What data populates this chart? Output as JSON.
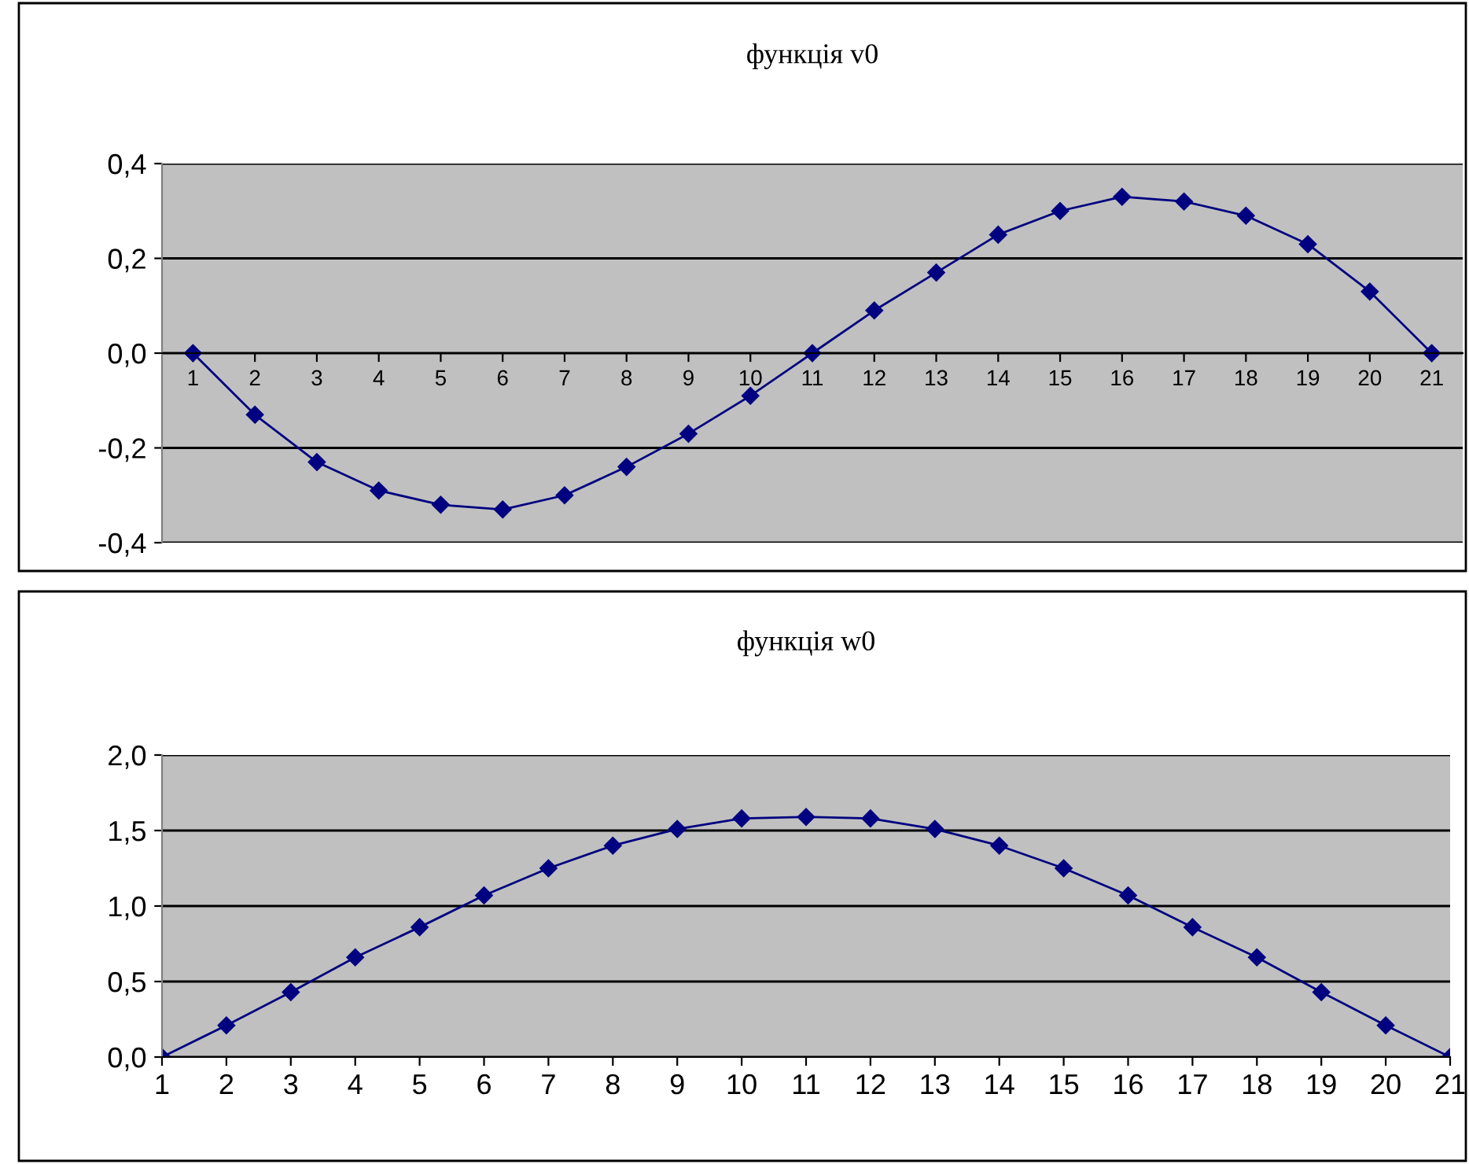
{
  "chart_data": [
    {
      "type": "line",
      "title": "функція v0",
      "categories": [
        "1",
        "2",
        "3",
        "4",
        "5",
        "6",
        "7",
        "8",
        "9",
        "10",
        "11",
        "12",
        "13",
        "14",
        "15",
        "16",
        "17",
        "18",
        "19",
        "20",
        "21"
      ],
      "series": [
        {
          "color": "#000080",
          "values": [
            0,
            -0.13,
            -0.23,
            -0.29,
            -0.32,
            -0.33,
            -0.3,
            -0.24,
            -0.17,
            -0.09,
            0,
            0.09,
            0.17,
            0.25,
            0.3,
            0.33,
            0.32,
            0.29,
            0.23,
            0.13,
            0
          ]
        }
      ],
      "ylim": [
        -0.4,
        0.4
      ],
      "yticks": [
        {
          "value": -0.4,
          "label": "-0,4"
        },
        {
          "value": -0.2,
          "label": "-0,2"
        },
        {
          "value": 0,
          "label": "0,0"
        },
        {
          "value": 0.2,
          "label": "0,2"
        },
        {
          "value": 0.4,
          "label": "0,4"
        }
      ],
      "grid": "y",
      "marker": "diamond",
      "line_style": "solid"
    },
    {
      "type": "line",
      "title": "функція w0",
      "categories": [
        "1",
        "2",
        "3",
        "4",
        "5",
        "6",
        "7",
        "8",
        "9",
        "10",
        "11",
        "12",
        "13",
        "14",
        "15",
        "16",
        "17",
        "18",
        "19",
        "20",
        "21"
      ],
      "series": [
        {
          "color": "#000080",
          "values": [
            0,
            0.21,
            0.43,
            0.66,
            0.86,
            1.07,
            1.25,
            1.4,
            1.51,
            1.58,
            1.59,
            1.58,
            1.51,
            1.4,
            1.25,
            1.07,
            0.86,
            0.66,
            0.43,
            0.21,
            0
          ]
        }
      ],
      "ylim": [
        0,
        2.0
      ],
      "yticks": [
        {
          "value": 0,
          "label": "0,0"
        },
        {
          "value": 0.5,
          "label": "0,5"
        },
        {
          "value": 1.0,
          "label": "1,0"
        },
        {
          "value": 1.5,
          "label": "1,5"
        },
        {
          "value": 2.0,
          "label": "2,0"
        }
      ],
      "grid": "y",
      "marker": "diamond",
      "line_style": "solid"
    }
  ]
}
